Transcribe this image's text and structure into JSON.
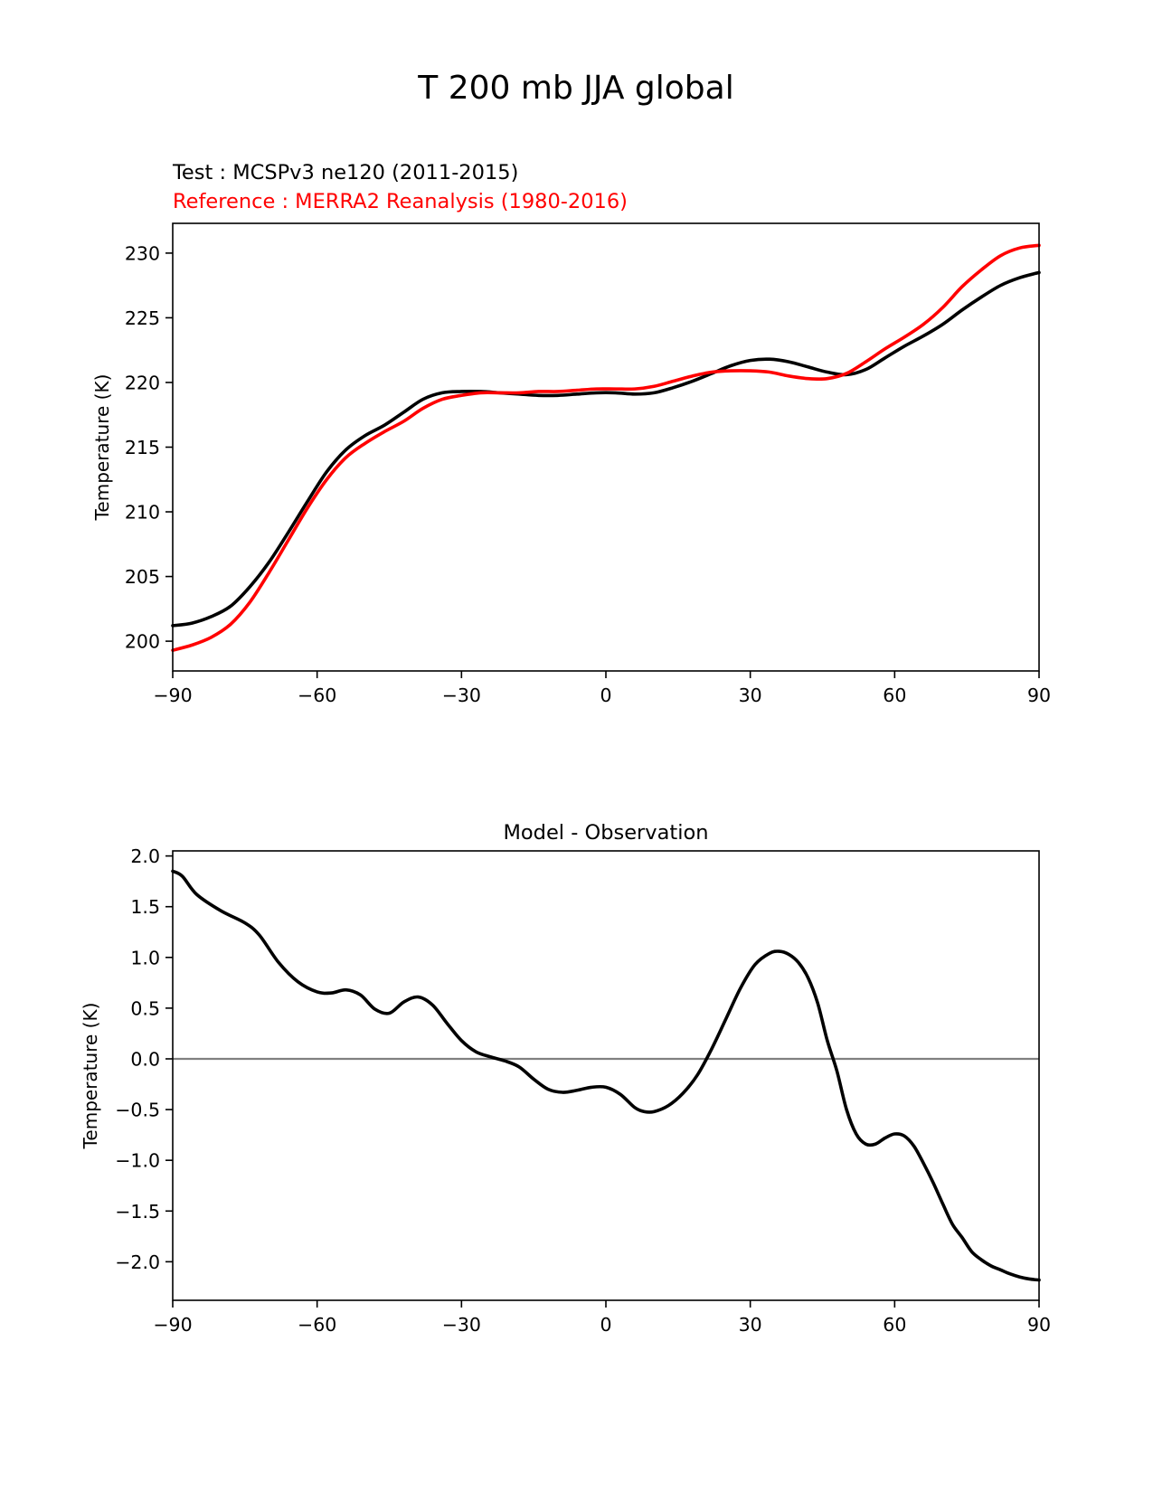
{
  "figure": {
    "suptitle": "T 200 mb JJA global"
  },
  "chart_data": [
    {
      "type": "line",
      "test_label": "Test : MCSPv3 ne120 (2011-2015)",
      "reference_label": "Reference : MERRA2 Reanalysis (1980-2016)",
      "xlabel": "",
      "ylabel": "Temperature (K)",
      "xlim": [
        -90,
        90
      ],
      "ylim": [
        197.7,
        232.3
      ],
      "x_ticks": [
        -90,
        -60,
        -30,
        0,
        30,
        60,
        90
      ],
      "x_tick_labels": [
        "−90",
        "−60",
        "−30",
        "0",
        "30",
        "60",
        "90"
      ],
      "y_ticks": [
        200,
        205,
        210,
        215,
        220,
        225,
        230
      ],
      "y_tick_labels": [
        "200",
        "205",
        "210",
        "215",
        "220",
        "225",
        "230"
      ],
      "series": [
        {
          "name": "Test : MCSPv3 ne120 (2011-2015)",
          "color": "#000000",
          "x": [
            -90,
            -86,
            -82,
            -78,
            -74,
            -70,
            -66,
            -62,
            -58,
            -54,
            -50,
            -46,
            -42,
            -38,
            -34,
            -30,
            -26,
            -22,
            -18,
            -14,
            -10,
            -6,
            -2,
            2,
            6,
            10,
            14,
            18,
            22,
            26,
            30,
            34,
            38,
            42,
            46,
            50,
            54,
            58,
            62,
            66,
            70,
            74,
            78,
            82,
            86,
            90
          ],
          "values": [
            201.2,
            201.4,
            201.9,
            202.7,
            204.2,
            206.1,
            208.4,
            210.8,
            213.1,
            214.8,
            215.9,
            216.7,
            217.7,
            218.7,
            219.2,
            219.3,
            219.3,
            219.2,
            219.1,
            219.0,
            219.0,
            219.1,
            219.2,
            219.2,
            219.1,
            219.2,
            219.6,
            220.1,
            220.7,
            221.3,
            221.7,
            221.8,
            221.6,
            221.2,
            220.8,
            220.6,
            221.0,
            221.9,
            222.8,
            223.6,
            224.5,
            225.6,
            226.6,
            227.5,
            228.1,
            228.5
          ]
        },
        {
          "name": "Reference : MERRA2 Reanalysis (1980-2016)",
          "color": "#ff0000",
          "x": [
            -90,
            -86,
            -82,
            -78,
            -74,
            -70,
            -66,
            -62,
            -58,
            -54,
            -50,
            -46,
            -42,
            -38,
            -34,
            -30,
            -26,
            -22,
            -18,
            -14,
            -10,
            -6,
            -2,
            2,
            6,
            10,
            14,
            18,
            22,
            26,
            30,
            34,
            38,
            42,
            46,
            50,
            54,
            58,
            62,
            66,
            70,
            74,
            78,
            82,
            86,
            90
          ],
          "values": [
            199.3,
            199.7,
            200.3,
            201.3,
            203.0,
            205.3,
            207.8,
            210.3,
            212.5,
            214.2,
            215.3,
            216.2,
            217.0,
            218.0,
            218.7,
            219.0,
            219.2,
            219.2,
            219.2,
            219.3,
            219.3,
            219.4,
            219.5,
            219.5,
            219.5,
            219.7,
            220.1,
            220.5,
            220.8,
            220.9,
            220.9,
            220.8,
            220.5,
            220.3,
            220.3,
            220.7,
            221.6,
            222.6,
            223.5,
            224.5,
            225.8,
            227.4,
            228.7,
            229.8,
            230.4,
            230.6
          ]
        }
      ]
    },
    {
      "type": "line",
      "title": "Model - Observation",
      "xlabel": "",
      "ylabel": "Temperature (K)",
      "xlim": [
        -90,
        90
      ],
      "ylim": [
        -2.38,
        2.05
      ],
      "x_ticks": [
        -90,
        -60,
        -30,
        0,
        30,
        60,
        90
      ],
      "x_tick_labels": [
        "−90",
        "−60",
        "−30",
        "0",
        "30",
        "60",
        "90"
      ],
      "y_ticks": [
        2.0,
        1.5,
        1.0,
        0.5,
        0.0,
        -0.5,
        -1.0,
        -1.5,
        -2.0
      ],
      "y_tick_labels": [
        "2.0",
        "1.5",
        "1.0",
        "0.5",
        "0.0",
        "−0.5",
        "−1.0",
        "−1.5",
        "−2.0"
      ],
      "zero_line": {
        "value": 0,
        "color": "#808080"
      },
      "series": [
        {
          "name": "Model - Observation",
          "color": "#000000",
          "x": [
            -90,
            -88,
            -85,
            -80,
            -75,
            -72,
            -68,
            -64,
            -60,
            -57,
            -54,
            -51,
            -48,
            -45,
            -42,
            -39,
            -36,
            -33,
            -30,
            -27,
            -24,
            -21,
            -18,
            -15,
            -12,
            -9,
            -6,
            -3,
            0,
            3,
            6,
            8,
            10,
            13,
            16,
            19,
            22,
            25,
            28,
            31,
            34,
            36,
            38,
            40,
            42,
            44,
            46,
            48,
            50,
            52,
            54,
            56,
            58,
            60,
            62,
            64,
            66,
            68,
            70,
            72,
            74,
            76,
            78,
            80,
            82,
            84,
            86,
            88,
            90
          ],
          "values": [
            1.85,
            1.8,
            1.62,
            1.46,
            1.34,
            1.22,
            0.95,
            0.76,
            0.66,
            0.65,
            0.68,
            0.63,
            0.49,
            0.45,
            0.56,
            0.61,
            0.53,
            0.35,
            0.18,
            0.07,
            0.02,
            -0.02,
            -0.08,
            -0.2,
            -0.3,
            -0.33,
            -0.31,
            -0.28,
            -0.28,
            -0.35,
            -0.48,
            -0.52,
            -0.52,
            -0.46,
            -0.34,
            -0.16,
            0.1,
            0.4,
            0.7,
            0.93,
            1.04,
            1.06,
            1.03,
            0.95,
            0.8,
            0.55,
            0.18,
            -0.12,
            -0.5,
            -0.74,
            -0.84,
            -0.84,
            -0.78,
            -0.74,
            -0.76,
            -0.86,
            -1.03,
            -1.22,
            -1.43,
            -1.63,
            -1.76,
            -1.9,
            -1.98,
            -2.04,
            -2.08,
            -2.12,
            -2.15,
            -2.17,
            -2.18
          ]
        }
      ]
    }
  ]
}
